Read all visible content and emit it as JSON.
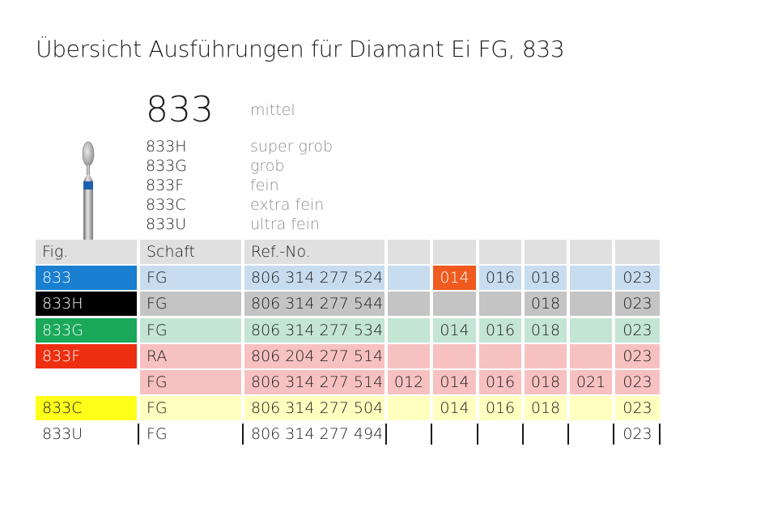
{
  "title": "Übersicht Ausführungen für Diamant Ei FG, 833",
  "product": {
    "code": "833",
    "grit": "mittel"
  },
  "variants": [
    {
      "code": "833H",
      "grit": "super grob"
    },
    {
      "code": "833G",
      "grit": "grob"
    },
    {
      "code": "833F",
      "grit": "fein"
    },
    {
      "code": "833C",
      "grit": "extra fein"
    },
    {
      "code": "833U",
      "grit": "ultra fein"
    }
  ],
  "table": {
    "headers": {
      "fig": "Fig.",
      "shaft": "Schaft",
      "ref": "Ref.-No."
    },
    "rows": [
      {
        "fig": "833",
        "shaft": "FG",
        "ref": "806 314 277 524",
        "sizes": [
          "",
          "014",
          "016",
          "018",
          "",
          "023"
        ],
        "fig_color": "#1a7fd0",
        "row_color": "#c7dcef",
        "highlight_color": "#f05a1e",
        "fig_text_color": "#ffffff"
      },
      {
        "fig": "833H",
        "shaft": "FG",
        "ref": "806 314 277 544",
        "sizes": [
          "",
          "",
          "",
          "018",
          "",
          "023"
        ],
        "fig_color": "#000000",
        "row_color": "#c4c4c4",
        "fig_text_color": "#ffffff"
      },
      {
        "fig": "833G",
        "shaft": "FG",
        "ref": "806 314 277 534",
        "sizes": [
          "",
          "014",
          "016",
          "018",
          "",
          "023"
        ],
        "fig_color": "#1aa85a",
        "row_color": "#c4e5d4",
        "fig_text_color": "#ffffff"
      },
      {
        "fig": "833F",
        "shaft": "RA",
        "ref": "806 204 277 514",
        "sizes": [
          "",
          "",
          "",
          "",
          "",
          "023"
        ],
        "fig_color": "#ee2e10",
        "row_color": "#f8c1c1",
        "fig_text_color": "#ffffff"
      },
      {
        "fig": "",
        "shaft": "FG",
        "ref": "806 314 277 514",
        "sizes": [
          "012",
          "014",
          "016",
          "018",
          "021",
          "023"
        ],
        "fig_color": "",
        "row_color": "#f8c1c1",
        "fig_text_color": "#1a1a1a"
      },
      {
        "fig": "833C",
        "shaft": "FG",
        "ref": "806 314 277 504",
        "sizes": [
          "",
          "014",
          "016",
          "018",
          "",
          "023"
        ],
        "fig_color": "#ffff1a",
        "row_color": "#ffffbf",
        "fig_text_color": "#1a1a1a"
      },
      {
        "fig": "833U",
        "shaft": "FG",
        "ref": "806 314 277 494",
        "sizes": [
          "",
          "",
          "",
          "",
          "",
          "023"
        ],
        "fig_color": "",
        "row_color": "",
        "fig_text_color": "#1a1a1a"
      }
    ]
  },
  "colors": {
    "header_bg": "#e0e0e0"
  },
  "icons": {
    "bur": "egg-shaped-diamond-bur-icon"
  }
}
